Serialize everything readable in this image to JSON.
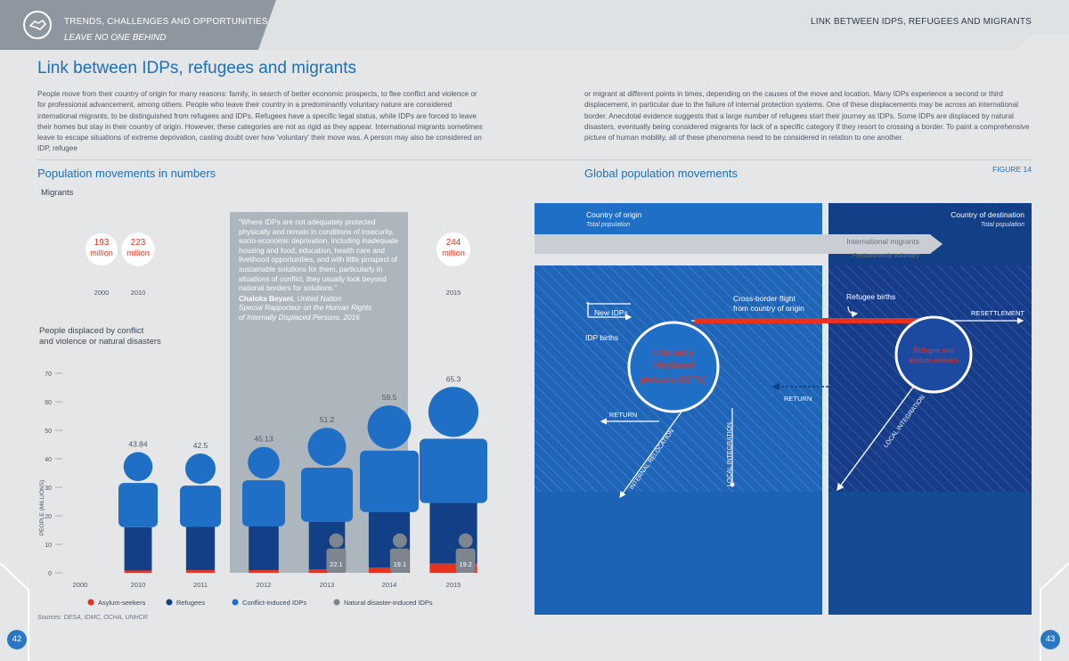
{
  "header": {
    "section": "TRENDS, CHALLENGES AND OPPORTUNITIES",
    "subsection": "LEAVE NO ONE BEHIND",
    "right": "LINK BETWEEN IDPS, REFUGEES AND MIGRANTS",
    "logo_icon": "handshake-icon"
  },
  "page_title": "Link between IDPs, refugees and migrants",
  "intro_col1": "People move from their country of origin for many reasons: family, in search of better economic prospects, to flee conflict and violence or for professional advancement, among others. People who leave their country in a predominantly voluntary nature are considered international migrants, to be distinguished from refugees and IDPs. Refugees have a specific legal status, while IDPs are forced to leave their homes but stay in their country of origin. However, these categories are not as rigid as they appear. International migrants sometimes leave to escape situations of extreme deprivation, casting doubt over how 'voluntary' their move was. A person may also be considered an IDP, refugee",
  "intro_col2": "or migrant at different points in times, depending on the causes of the move and location. Many IDPs experience a second or third displacement, in particular due to the failure of internal protection systems. One of these displacements may be across an international border. Anecdotal evidence suggests that a large number of refugees start their journey as IDPs. Some IDPs are displaced by natural disasters, eventually being considered migrants for lack of a specific category if they resort to crossing a border. To paint a comprehensive picture of human mobility, all of these phenomena need to be considered in relation to one another.",
  "left_section_title": "Population movements in numbers",
  "right_section_title": "Global population movements",
  "figure_label": "FIGURE 14",
  "migrants_label": "Migrants",
  "displaced_label_1": "People displaced by conflict",
  "displaced_label_2": "and violence or natural disasters",
  "quote": {
    "text": "“Where IDPs are not adequately protected physically and remain in conditions of insecurity, socio-economic deprivation, including inadequate housing and food, education, health care and livelihood opportunities, and with little prospect of sustainable solutions for them, particularly in situations of conflict, they usually look beyond national borders for solutions.”",
    "author": "Chaloka Beyani",
    "author_role": ", United Nation",
    "role_line_2": "Special Rapporteur on the Human Rights",
    "role_line_3": "of Internally Displaced Persons, 2016"
  },
  "sources": "Sources: DESA, IDMC, OCHA, UNHCR",
  "page_left": "42",
  "page_right": "43",
  "colors": {
    "blue": "#1d6fb6",
    "navy": "#123f86",
    "bright_blue": "#1f6fc6",
    "red": "#e8321f",
    "grey": "#7d868f",
    "bg": "#e4e6e8"
  },
  "chart_data": [
    {
      "type": "bubble",
      "title": "Migrants",
      "x": [
        "2000",
        "2010",
        "2015"
      ],
      "values": [
        193,
        223,
        244
      ],
      "value_labels": [
        [
          "193",
          "million"
        ],
        [
          "223",
          "million"
        ],
        [
          "244",
          "million"
        ]
      ]
    },
    {
      "type": "bar",
      "ylabel": "PEOPLE (MILLIONS)",
      "ylim": [
        0,
        70
      ],
      "yticks": [
        0,
        10,
        20,
        30,
        40,
        50,
        60,
        70
      ],
      "categories": [
        "2000",
        "2010",
        "2011",
        "2012",
        "2013",
        "2014",
        "2015"
      ],
      "totals": [
        "",
        "43.84",
        "42.5",
        "45.13",
        "51.2",
        "59.5",
        "65.3"
      ],
      "disaster_labels": [
        "",
        "",
        "",
        "",
        "22.1",
        "19.1",
        "19.2"
      ],
      "series": [
        {
          "name": "Asylum-seekers",
          "color": "#e8321f",
          "values": [
            null,
            0.8,
            0.9,
            0.9,
            1.2,
            1.8,
            3.2
          ]
        },
        {
          "name": "Refugees",
          "color": "#123f86",
          "values": [
            null,
            15.2,
            15.2,
            15.4,
            16.7,
            19.5,
            21.3
          ]
        },
        {
          "name": "Conflict-induced IDPs",
          "color": "#1f6fc6",
          "values": [
            null,
            27.8,
            26.4,
            28.8,
            33.3,
            38.2,
            40.8
          ]
        },
        {
          "name": "Natural disaster-induced IDPs",
          "color": "#7d868f",
          "values": [
            null,
            null,
            null,
            null,
            22.1,
            19.1,
            19.2
          ]
        }
      ]
    }
  ],
  "diagram": {
    "origin_title": "Country of origin",
    "origin_sub": "Total population",
    "dest_title": "Country of destination",
    "dest_sub": "Total population",
    "intl_migrants": "International migrants",
    "intl_sub": "Predominantly voluntary",
    "new_idps": "New IDPs",
    "idp_births": "IDP births",
    "cross_border_1": "Cross-border flight",
    "cross_border_2": "from country of origin",
    "refugee_births": "Refugee births",
    "resettlement": "RESETTLEMENT",
    "idp_circle": [
      "Internally",
      "displaced",
      "persons (IDPs)"
    ],
    "refugee_circle": [
      "Refugee and",
      "asylum-seekers"
    ],
    "return_left": "RETURN",
    "return_right": "RETURN",
    "internal_relocation": "INTERNAL RELOCATION",
    "local_integration_left": "LOCAL INTEGRATION",
    "local_integration_right": "LOCAL INTEGRATION"
  }
}
